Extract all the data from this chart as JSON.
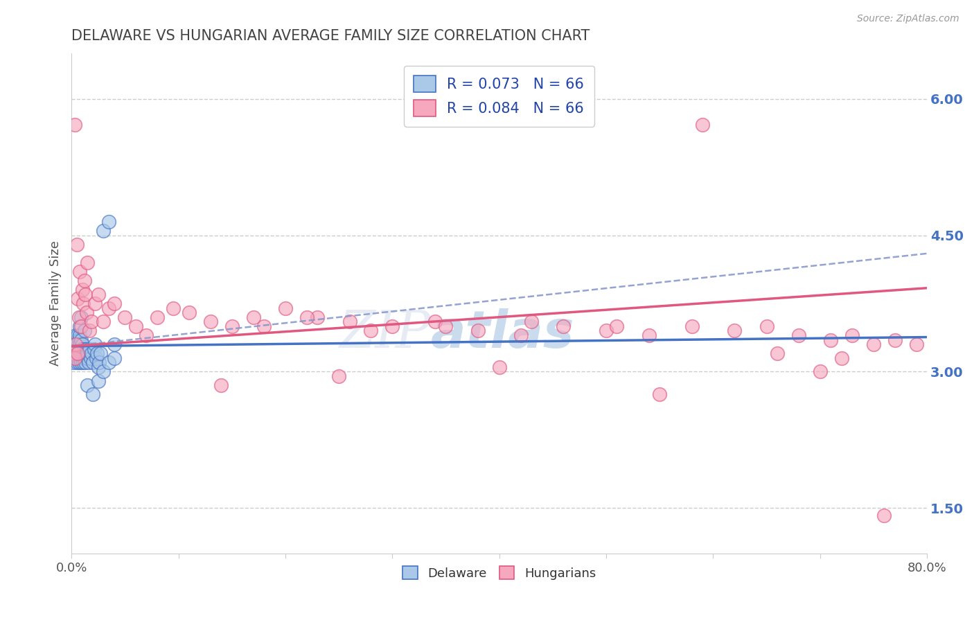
{
  "title": "DELAWARE VS HUNGARIAN AVERAGE FAMILY SIZE CORRELATION CHART",
  "source_text": "Source: ZipAtlas.com",
  "ylabel": "Average Family Size",
  "xlabel": "",
  "xmin": 0.0,
  "xmax": 0.8,
  "ymin": 1.0,
  "ymax": 6.5,
  "yticks": [
    1.5,
    3.0,
    4.5,
    6.0
  ],
  "xticks": [
    0.0,
    0.1,
    0.2,
    0.3,
    0.4,
    0.5,
    0.6,
    0.7,
    0.8
  ],
  "xtick_labels": [
    "0.0%",
    "",
    "",
    "",
    "",
    "",
    "",
    "",
    "80.0%"
  ],
  "blue_color": "#aac8e8",
  "pink_color": "#f5a8be",
  "blue_line_color": "#4472C4",
  "pink_line_color": "#e05880",
  "dash_line_color": "#8899cc",
  "R_blue": 0.073,
  "N_blue": 66,
  "R_pink": 0.084,
  "N_pink": 66,
  "legend_label_blue": "Delaware",
  "legend_label_pink": "Hungarians",
  "blue_x": [
    0.001,
    0.001,
    0.002,
    0.002,
    0.002,
    0.003,
    0.003,
    0.003,
    0.004,
    0.004,
    0.004,
    0.004,
    0.005,
    0.005,
    0.005,
    0.005,
    0.006,
    0.006,
    0.006,
    0.007,
    0.007,
    0.007,
    0.007,
    0.008,
    0.008,
    0.008,
    0.008,
    0.009,
    0.009,
    0.009,
    0.01,
    0.01,
    0.01,
    0.011,
    0.011,
    0.012,
    0.012,
    0.013,
    0.013,
    0.014,
    0.015,
    0.015,
    0.016,
    0.017,
    0.018,
    0.019,
    0.02,
    0.021,
    0.022,
    0.023,
    0.024,
    0.025,
    0.026,
    0.027,
    0.015,
    0.02,
    0.025,
    0.03,
    0.035,
    0.04,
    0.03,
    0.035,
    0.04,
    0.008,
    0.009,
    0.012
  ],
  "blue_y": [
    3.2,
    3.3,
    3.1,
    3.25,
    3.35,
    3.15,
    3.3,
    3.2,
    3.25,
    3.4,
    3.15,
    3.3,
    3.35,
    3.2,
    3.1,
    3.25,
    3.4,
    3.25,
    3.15,
    3.35,
    3.2,
    3.25,
    3.1,
    3.4,
    3.3,
    3.15,
    3.25,
    3.35,
    3.2,
    3.1,
    3.3,
    3.25,
    3.15,
    3.2,
    3.1,
    3.25,
    3.15,
    3.2,
    3.1,
    3.25,
    3.15,
    3.2,
    3.1,
    3.25,
    3.15,
    3.2,
    3.1,
    3.25,
    3.3,
    3.15,
    3.2,
    3.05,
    3.1,
    3.2,
    2.85,
    2.75,
    2.9,
    3.0,
    3.1,
    3.15,
    4.55,
    4.65,
    3.3,
    3.5,
    3.6,
    3.45
  ],
  "pink_x": [
    0.002,
    0.003,
    0.004,
    0.005,
    0.006,
    0.007,
    0.008,
    0.009,
    0.01,
    0.011,
    0.012,
    0.013,
    0.014,
    0.015,
    0.017,
    0.019,
    0.022,
    0.025,
    0.03,
    0.035,
    0.04,
    0.05,
    0.06,
    0.07,
    0.08,
    0.095,
    0.11,
    0.13,
    0.15,
    0.17,
    0.2,
    0.23,
    0.26,
    0.3,
    0.34,
    0.38,
    0.42,
    0.46,
    0.5,
    0.54,
    0.58,
    0.62,
    0.65,
    0.68,
    0.71,
    0.73,
    0.75,
    0.77,
    0.79,
    0.18,
    0.22,
    0.28,
    0.35,
    0.43,
    0.51,
    0.59,
    0.66,
    0.72,
    0.003,
    0.006,
    0.14,
    0.25,
    0.4,
    0.55,
    0.7,
    0.76
  ],
  "pink_y": [
    3.2,
    5.72,
    3.3,
    4.4,
    3.8,
    3.6,
    4.1,
    3.5,
    3.9,
    3.75,
    4.0,
    3.85,
    3.65,
    4.2,
    3.45,
    3.55,
    3.75,
    3.85,
    3.55,
    3.7,
    3.75,
    3.6,
    3.5,
    3.4,
    3.6,
    3.7,
    3.65,
    3.55,
    3.5,
    3.6,
    3.7,
    3.6,
    3.55,
    3.5,
    3.55,
    3.45,
    3.4,
    3.5,
    3.45,
    3.4,
    3.5,
    3.45,
    3.5,
    3.4,
    3.35,
    3.4,
    3.3,
    3.35,
    3.3,
    3.5,
    3.6,
    3.45,
    3.5,
    3.55,
    3.5,
    5.72,
    3.2,
    3.15,
    3.15,
    3.2,
    2.85,
    2.95,
    3.05,
    2.75,
    3.0,
    1.42
  ],
  "watermark_zip": "ZIP",
  "watermark_atlas": "atlas",
  "background_color": "#ffffff",
  "grid_color": "#cccccc",
  "title_fontsize": 15,
  "title_color": "#444444",
  "ylabel_color": "#555555",
  "ytick_color": "#4472C4",
  "xtick_color": "#555555"
}
